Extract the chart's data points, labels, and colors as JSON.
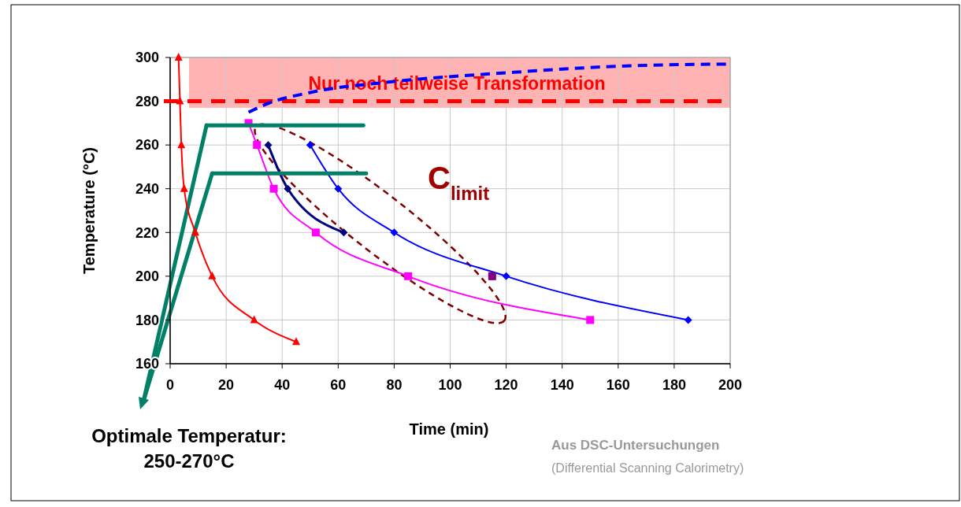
{
  "chart_data": {
    "type": "line",
    "xlabel": "Time (min)",
    "ylabel": "Temperature (°C)",
    "xlim": [
      0,
      200
    ],
    "xticks": [
      0,
      20,
      40,
      60,
      80,
      100,
      120,
      140,
      160,
      180,
      200
    ],
    "ylim": [
      160,
      300
    ],
    "yticks": [
      160,
      180,
      200,
      220,
      240,
      260,
      280,
      300
    ],
    "grid": true,
    "series": [
      {
        "color": "#ff0000",
        "marker": "triangle",
        "x": [
          3,
          3.5,
          4,
          5,
          9,
          15,
          30,
          45
        ],
        "values": [
          300,
          280,
          260,
          240,
          220,
          200,
          180,
          170
        ]
      },
      {
        "color": "#000080",
        "marker": "diamond",
        "x": [
          35,
          42,
          62
        ],
        "values": [
          260,
          240,
          220
        ]
      },
      {
        "color": "#ff00ff",
        "marker": "square",
        "x": [
          28,
          31,
          37,
          52,
          85,
          150
        ],
        "values": [
          270,
          260,
          240,
          220,
          200,
          180
        ]
      },
      {
        "color": "#0000ff",
        "marker": "diamond",
        "x": [
          50,
          60,
          80,
          120,
          185
        ],
        "values": [
          260,
          240,
          220,
          200,
          180
        ]
      },
      {
        "type": "scatter",
        "color": "#800080",
        "marker": "square",
        "x": [
          115
        ],
        "values": [
          200
        ]
      },
      {
        "color": "#0000ff",
        "marker": "none",
        "line_style": "dashed",
        "x": [
          28,
          35,
          50,
          80,
          120,
          160,
          200
        ],
        "values": [
          275,
          279,
          284,
          289,
          293,
          296,
          297
        ]
      },
      {
        "color": "#008066",
        "marker": "none",
        "x": [
          13,
          69
        ],
        "values": [
          269,
          269
        ]
      },
      {
        "color": "#008066",
        "marker": "none",
        "x": [
          15,
          70
        ],
        "values": [
          247,
          247
        ]
      }
    ],
    "ref_lines": [
      {
        "axis": "y",
        "value": 280,
        "color": "#ff0000",
        "line_style": "dashed"
      }
    ],
    "bands": [
      {
        "axis": "y",
        "from": 277,
        "to": 300,
        "label": "Nur noch teilweise Transformation",
        "color": "#ffb3b3"
      }
    ],
    "annotations": [
      "C$_{limit}$",
      "Optimale Temperatur:",
      "250-270°C",
      "Aus DSC-Untersuchungen",
      "(Differential Scanning Calorimetry)"
    ]
  }
}
